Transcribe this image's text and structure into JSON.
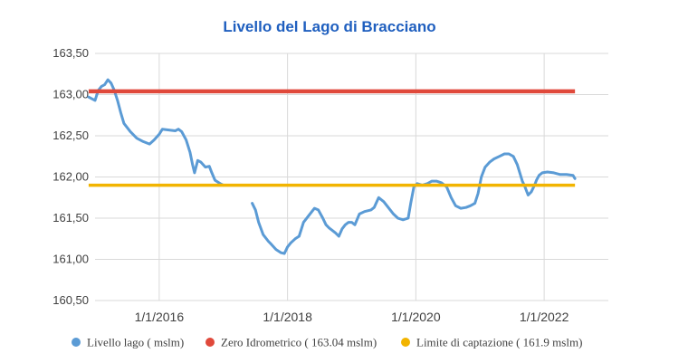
{
  "chart_data": {
    "type": "line",
    "title": "Livello del Lago di Bracciano",
    "xlabel": "",
    "ylabel": "",
    "xlim": [
      2015.0,
      2023.0
    ],
    "ylim": [
      160.5,
      163.5
    ],
    "grid": true,
    "legend_position": "bottom",
    "yticks": [
      {
        "value": 160.5,
        "label": "160,50"
      },
      {
        "value": 161.0,
        "label": "161,00"
      },
      {
        "value": 161.5,
        "label": "161,50"
      },
      {
        "value": 162.0,
        "label": "162,00"
      },
      {
        "value": 162.5,
        "label": "162,50"
      },
      {
        "value": 163.0,
        "label": "163,00"
      },
      {
        "value": 163.5,
        "label": "163,50"
      }
    ],
    "xticks": [
      {
        "value": 2016.0,
        "label": "1/1/2016"
      },
      {
        "value": 2018.0,
        "label": "1/1/2018"
      },
      {
        "value": 2020.0,
        "label": "1/1/2020"
      },
      {
        "value": 2022.0,
        "label": "1/1/2022"
      }
    ],
    "series": [
      {
        "name": "Livello lago ( mslm)",
        "color": "#5b9bd5",
        "kind": "line",
        "segments": [
          [
            [
              2014.9,
              162.97
            ],
            [
              2015.0,
              162.93
            ],
            [
              2015.05,
              163.05
            ],
            [
              2015.1,
              163.1
            ],
            [
              2015.15,
              163.12
            ],
            [
              2015.2,
              163.18
            ],
            [
              2015.25,
              163.14
            ],
            [
              2015.3,
              163.05
            ],
            [
              2015.35,
              162.93
            ],
            [
              2015.4,
              162.78
            ],
            [
              2015.45,
              162.65
            ],
            [
              2015.55,
              162.55
            ],
            [
              2015.65,
              162.47
            ],
            [
              2015.75,
              162.43
            ],
            [
              2015.85,
              162.4
            ],
            [
              2015.92,
              162.45
            ],
            [
              2016.0,
              162.52
            ],
            [
              2016.05,
              162.58
            ],
            [
              2016.15,
              162.57
            ],
            [
              2016.25,
              162.56
            ],
            [
              2016.3,
              162.58
            ],
            [
              2016.35,
              162.55
            ],
            [
              2016.42,
              162.45
            ],
            [
              2016.48,
              162.3
            ],
            [
              2016.52,
              162.15
            ],
            [
              2016.55,
              162.05
            ],
            [
              2016.6,
              162.2
            ],
            [
              2016.65,
              162.18
            ],
            [
              2016.72,
              162.12
            ],
            [
              2016.78,
              162.13
            ],
            [
              2016.82,
              162.05
            ],
            [
              2016.87,
              161.96
            ],
            [
              2016.95,
              161.92
            ],
            [
              2017.0,
              161.9
            ]
          ],
          [
            [
              2017.45,
              161.68
            ],
            [
              2017.5,
              161.6
            ],
            [
              2017.55,
              161.45
            ],
            [
              2017.62,
              161.3
            ],
            [
              2017.7,
              161.22
            ],
            [
              2017.75,
              161.18
            ],
            [
              2017.82,
              161.12
            ],
            [
              2017.9,
              161.08
            ],
            [
              2017.95,
              161.07
            ],
            [
              2018.0,
              161.15
            ],
            [
              2018.05,
              161.2
            ],
            [
              2018.12,
              161.25
            ],
            [
              2018.18,
              161.28
            ],
            [
              2018.25,
              161.45
            ],
            [
              2018.35,
              161.55
            ],
            [
              2018.42,
              161.62
            ],
            [
              2018.48,
              161.6
            ],
            [
              2018.55,
              161.5
            ],
            [
              2018.6,
              161.42
            ],
            [
              2018.65,
              161.38
            ],
            [
              2018.75,
              161.32
            ],
            [
              2018.8,
              161.28
            ],
            [
              2018.85,
              161.37
            ],
            [
              2018.9,
              161.42
            ],
            [
              2018.95,
              161.45
            ],
            [
              2019.0,
              161.45
            ],
            [
              2019.05,
              161.42
            ],
            [
              2019.12,
              161.55
            ],
            [
              2019.2,
              161.58
            ],
            [
              2019.3,
              161.6
            ],
            [
              2019.35,
              161.63
            ],
            [
              2019.42,
              161.75
            ],
            [
              2019.5,
              161.7
            ],
            [
              2019.58,
              161.62
            ],
            [
              2019.65,
              161.55
            ],
            [
              2019.72,
              161.5
            ],
            [
              2019.8,
              161.48
            ],
            [
              2019.88,
              161.5
            ],
            [
              2019.92,
              161.68
            ],
            [
              2019.97,
              161.88
            ],
            [
              2020.02,
              161.92
            ],
            [
              2020.1,
              161.9
            ],
            [
              2020.18,
              161.92
            ],
            [
              2020.25,
              161.95
            ],
            [
              2020.32,
              161.95
            ],
            [
              2020.4,
              161.93
            ],
            [
              2020.48,
              161.88
            ],
            [
              2020.55,
              161.75
            ],
            [
              2020.62,
              161.65
            ],
            [
              2020.7,
              161.62
            ],
            [
              2020.78,
              161.63
            ],
            [
              2020.85,
              161.65
            ],
            [
              2020.92,
              161.68
            ],
            [
              2020.97,
              161.8
            ],
            [
              2021.02,
              162.0
            ],
            [
              2021.08,
              162.12
            ],
            [
              2021.15,
              162.18
            ],
            [
              2021.22,
              162.22
            ],
            [
              2021.3,
              162.25
            ],
            [
              2021.38,
              162.28
            ],
            [
              2021.45,
              162.28
            ],
            [
              2021.52,
              162.25
            ],
            [
              2021.58,
              162.15
            ],
            [
              2021.62,
              162.05
            ],
            [
              2021.66,
              161.95
            ],
            [
              2021.7,
              161.88
            ],
            [
              2021.75,
              161.78
            ],
            [
              2021.8,
              161.82
            ],
            [
              2021.85,
              161.9
            ],
            [
              2021.88,
              161.96
            ],
            [
              2021.92,
              162.02
            ],
            [
              2021.97,
              162.05
            ],
            [
              2022.05,
              162.06
            ],
            [
              2022.15,
              162.05
            ],
            [
              2022.25,
              162.03
            ],
            [
              2022.35,
              162.03
            ],
            [
              2022.45,
              162.02
            ],
            [
              2022.48,
              161.98
            ]
          ]
        ]
      },
      {
        "name": "Zero Idrometrico ( 163.04 mslm)",
        "color": "#e0493b",
        "kind": "hline",
        "value": 163.04,
        "x_range": [
          2014.9,
          2022.48
        ]
      },
      {
        "name": "Limite di captazione ( 161.9 mslm)",
        "color": "#f2b400",
        "kind": "hline",
        "value": 161.9,
        "x_range": [
          2014.9,
          2022.48
        ]
      }
    ]
  }
}
